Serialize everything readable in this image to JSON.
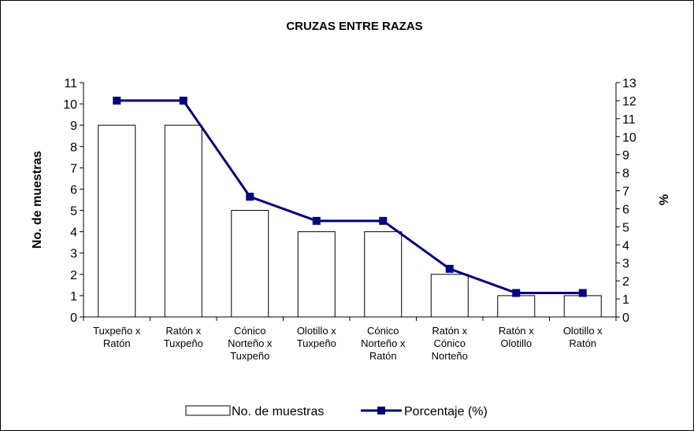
{
  "chart_data": {
    "type": "bar-line",
    "title": "CRUZAS ENTRE RAZAS",
    "categories": [
      "Tuxpeño x\nRatón",
      "Ratón x\nTuxpeño",
      "Cónico\nNorteño x\nTuxpeño",
      "Olotillo x\nTuxpeño",
      "Cónico\nNorteño x\nRatón",
      "Ratón x\nCónico\nNorteño",
      "Ratón x\nOlotillo",
      "Olotillo x\nRatón"
    ],
    "series": [
      {
        "name": "No. de muestras",
        "type": "bar",
        "color": "#ffffff",
        "values": [
          9,
          9,
          5,
          4,
          4,
          2,
          1,
          1
        ]
      },
      {
        "name": "Porcentaje (%)",
        "type": "line",
        "axis": "y2",
        "color": "#000080",
        "values": [
          12,
          12,
          6.67,
          5.33,
          5.33,
          2.67,
          1.33,
          1.33
        ]
      }
    ],
    "ylabel": "No. de muestras",
    "y2label": "%",
    "ylim": [
      0,
      11
    ],
    "yticks": [
      0,
      1,
      2,
      3,
      4,
      5,
      6,
      7,
      8,
      9,
      10,
      11
    ],
    "y2lim": [
      0,
      13
    ],
    "y2ticks": [
      0,
      1,
      2,
      3,
      4,
      5,
      6,
      7,
      8,
      9,
      10,
      11,
      12,
      13
    ],
    "legend": "bottom"
  }
}
